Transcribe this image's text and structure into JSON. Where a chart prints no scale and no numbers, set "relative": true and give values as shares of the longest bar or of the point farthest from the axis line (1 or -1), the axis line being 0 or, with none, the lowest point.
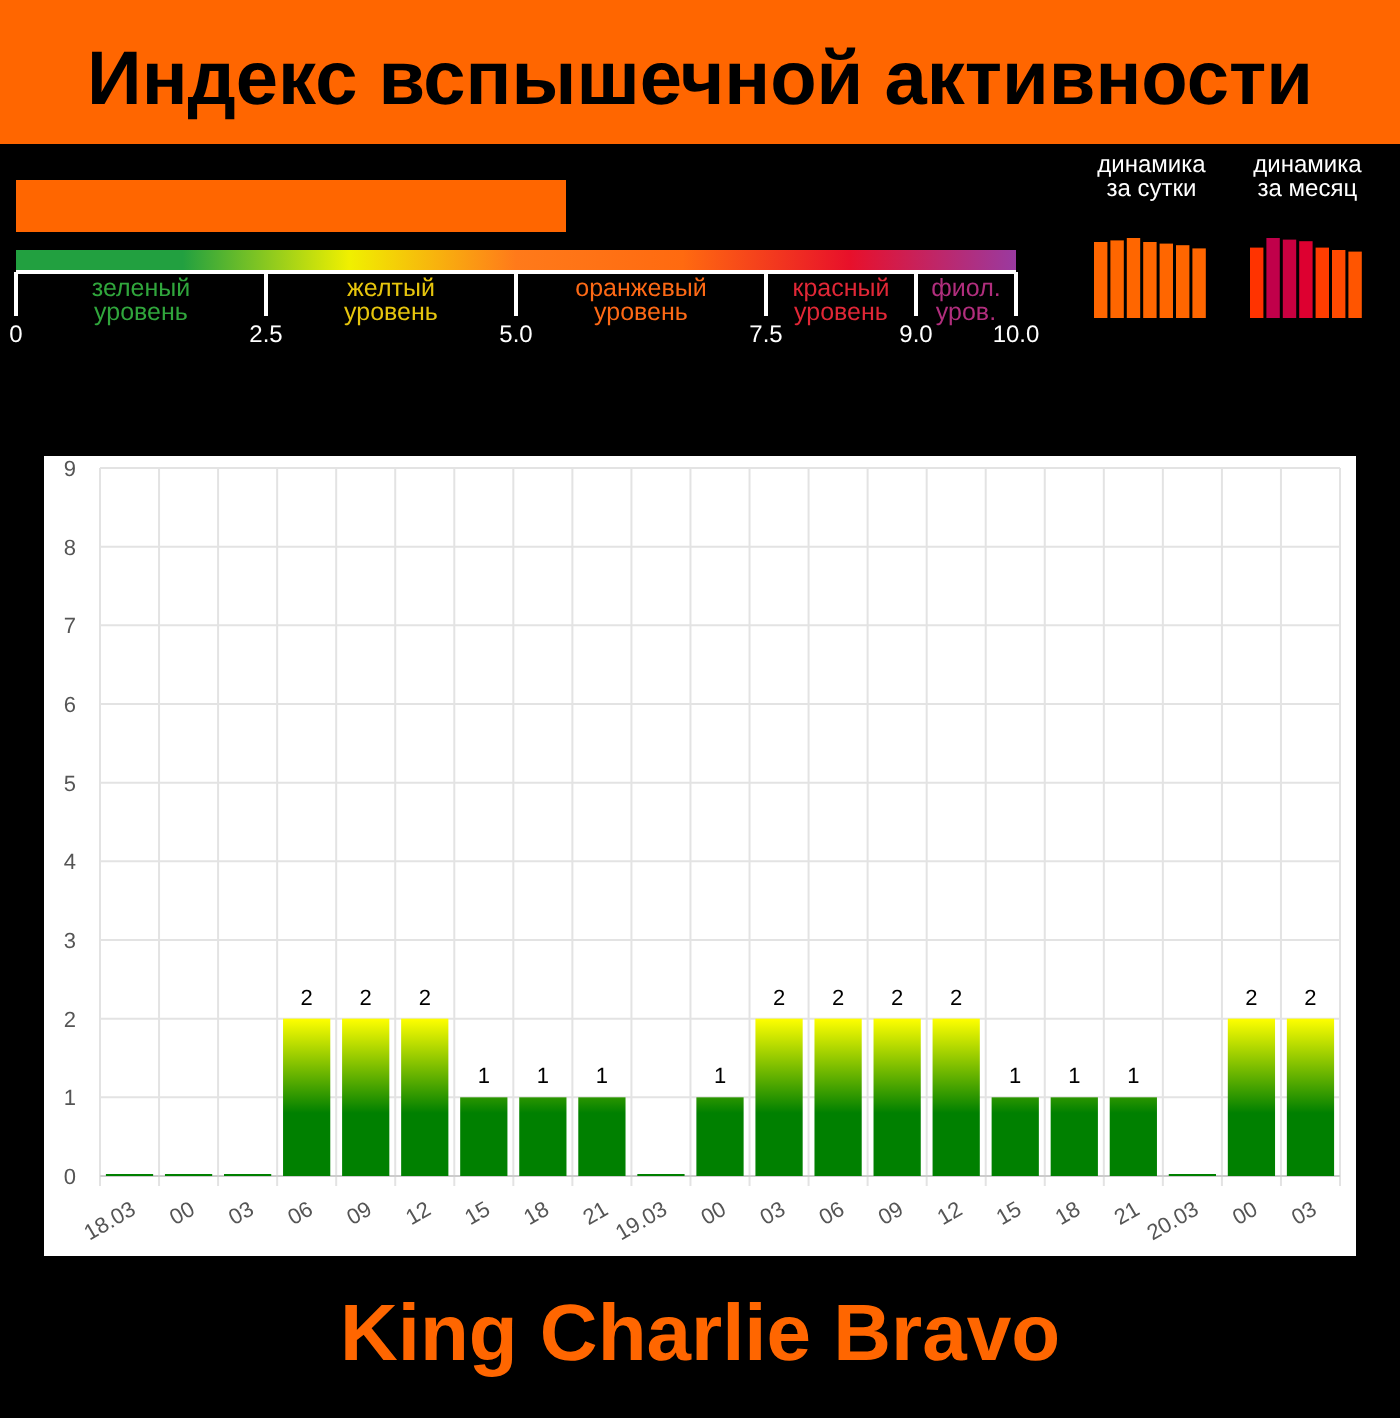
{
  "chart_data": [
    {
      "type": "bar",
      "orientation": "horizontal",
      "title": "Индекс вспышечной активности",
      "categories": [
        null
      ],
      "values": [
        5.5
      ],
      "color": "#ff6600",
      "xlim": [
        0,
        10
      ],
      "xticks": [
        0,
        2.5,
        {
          "value": 5,
          "label": "5.0"
        },
        7.5,
        {
          "value": 9,
          "label": "9.0"
        },
        {
          "value": 10,
          "label": "10.0"
        }
      ],
      "annotations": [
        "зеленый уровень",
        "желтый уровень",
        "оранжевый уровень",
        "красный уровень",
        "фиол. уров."
      ]
    },
    {
      "type": "bar",
      "title": "динамика за сутки",
      "relative": true,
      "categories": [
        null,
        null,
        null,
        null,
        null,
        null,
        null
      ],
      "values": [
        0.95,
        0.97,
        1,
        0.95,
        0.93,
        0.91,
        0.87
      ],
      "color": "#ff6600"
    },
    {
      "type": "bar",
      "title": "динамика за месяц",
      "relative": true,
      "categories": [
        null,
        null,
        null,
        null,
        null,
        null,
        null
      ],
      "values": [
        0.88,
        1,
        0.98,
        0.96,
        0.88,
        0.85,
        0.83
      ],
      "colors": [
        "#ff3300",
        "#c0004a",
        "#c80040",
        "#dd0030",
        "#ff3d00",
        "#ff4a00",
        "#ff5500"
      ]
    },
    {
      "type": "bar",
      "categories": [
        "18.03",
        "00",
        "03",
        "06",
        "09",
        "12",
        "15",
        "18",
        "21",
        "19.03",
        "00",
        "03",
        "06",
        "09",
        "12",
        "15",
        "18",
        "21",
        "20.03",
        "00",
        "03"
      ],
      "values": [
        0,
        0,
        0,
        2,
        2,
        2,
        1,
        1,
        1,
        0,
        1,
        2,
        2,
        2,
        2,
        1,
        1,
        1,
        0,
        2,
        2
      ],
      "value_labels": [
        null,
        null,
        null,
        "2",
        "2",
        "2",
        "1",
        "1",
        "1",
        null,
        "1",
        "2",
        "2",
        "2",
        "2",
        "1",
        "1",
        "1",
        null,
        "2",
        "2"
      ],
      "color": "#008000",
      "ylim": [
        0,
        9
      ],
      "yticks": [
        0,
        1,
        2,
        3,
        4,
        5,
        6,
        7,
        8,
        9
      ],
      "grid": true,
      "annotations": [
        "King Charlie Bravo"
      ]
    }
  ]
}
